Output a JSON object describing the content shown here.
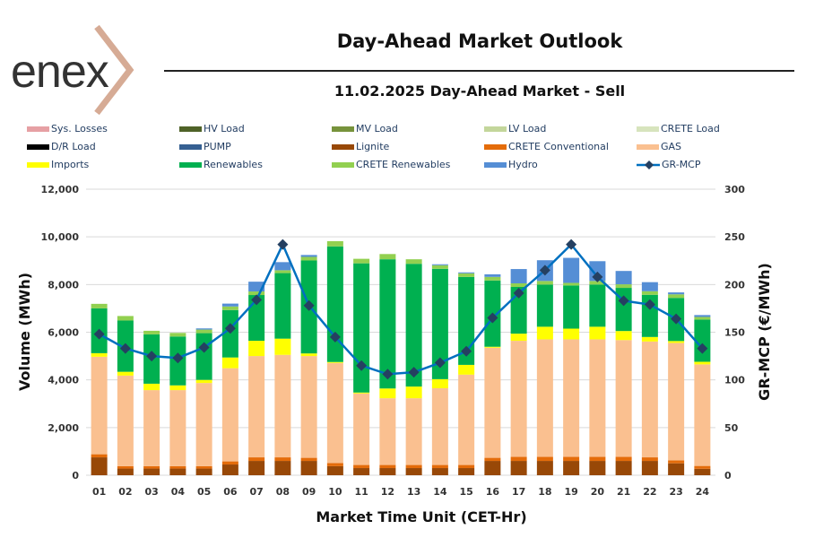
{
  "header": {
    "logo_text": "enex",
    "title": "Day-Ahead Market Outlook",
    "subtitle": "11.02.2025  Day-Ahead Market - Sell"
  },
  "colors": {
    "sys_losses": "#e6a0a4",
    "hv_load": "#4f6228",
    "mv_load": "#77933c",
    "lv_load": "#c3d69b",
    "crete_load": "#d7e4bd",
    "dr_load": "#000000",
    "pump": "#366092",
    "lignite": "#984807",
    "crete_conventional": "#e46c0a",
    "gas": "#fac090",
    "imports": "#ffff00",
    "renewables": "#00b050",
    "crete_renewables": "#92d050",
    "hydro": "#558ed5",
    "mcp_line": "#0070c0",
    "mcp_marker": "#254061"
  },
  "chart_data": {
    "type": "bar",
    "subtype": "stacked-bar-with-line",
    "title": "11.02.2025  Day-Ahead Market - Sell",
    "xlabel": "Market Time Unit (CET-Hr)",
    "ylabel": "Volume (MWh)",
    "y2label": "GR-MCP (€/MWh)",
    "ylim": [
      0,
      12000
    ],
    "y2lim": [
      0,
      300
    ],
    "yticks": [
      "0",
      "2,000",
      "4,000",
      "6,000",
      "8,000",
      "10,000",
      "12,000"
    ],
    "y2ticks": [
      "0",
      "50",
      "100",
      "150",
      "200",
      "250",
      "300"
    ],
    "grid": true,
    "legend_position": "top",
    "categories": [
      "01",
      "02",
      "03",
      "04",
      "05",
      "06",
      "07",
      "08",
      "09",
      "10",
      "11",
      "12",
      "13",
      "14",
      "15",
      "16",
      "17",
      "18",
      "19",
      "20",
      "21",
      "22",
      "23",
      "24"
    ],
    "legend": [
      {
        "key": "sys_losses",
        "label": "Sys. Losses"
      },
      {
        "key": "hv_load",
        "label": "HV Load"
      },
      {
        "key": "mv_load",
        "label": "MV Load"
      },
      {
        "key": "lv_load",
        "label": "LV Load"
      },
      {
        "key": "crete_load",
        "label": "CRETE Load"
      },
      {
        "key": "dr_load",
        "label": "D/R Load"
      },
      {
        "key": "pump",
        "label": "PUMP"
      },
      {
        "key": "lignite",
        "label": "Lignite"
      },
      {
        "key": "crete_conventional",
        "label": "CRETE Conventional"
      },
      {
        "key": "gas",
        "label": "GAS"
      },
      {
        "key": "imports",
        "label": "Imports"
      },
      {
        "key": "renewables",
        "label": "Renewables"
      },
      {
        "key": "crete_renewables",
        "label": "CRETE Renewables"
      },
      {
        "key": "hydro",
        "label": "Hydro"
      },
      {
        "key": "mcp",
        "label": "GR-MCP"
      }
    ],
    "series": [
      {
        "name": "Lignite",
        "key": "lignite",
        "values": [
          750,
          280,
          280,
          280,
          280,
          450,
          600,
          600,
          600,
          380,
          300,
          300,
          300,
          300,
          300,
          600,
          600,
          600,
          600,
          600,
          600,
          600,
          500,
          270
        ]
      },
      {
        "name": "CRETE Conventional",
        "key": "crete_conventional",
        "values": [
          130,
          100,
          100,
          100,
          100,
          130,
          150,
          150,
          130,
          130,
          130,
          130,
          130,
          130,
          130,
          130,
          170,
          170,
          170,
          170,
          170,
          150,
          120,
          120
        ]
      },
      {
        "name": "GAS",
        "key": "gas",
        "values": [
          4090,
          3800,
          3190,
          3190,
          3490,
          3910,
          4250,
          4300,
          4270,
          4200,
          3000,
          2800,
          2800,
          3220,
          3790,
          4620,
          4870,
          4930,
          4930,
          4930,
          4900,
          4860,
          4930,
          4260
        ]
      },
      {
        "name": "Imports",
        "key": "imports",
        "values": [
          150,
          160,
          270,
          200,
          130,
          450,
          640,
          680,
          110,
          40,
          40,
          410,
          490,
          380,
          410,
          40,
          300,
          530,
          450,
          530,
          380,
          190,
          80,
          110
        ]
      },
      {
        "name": "Renewables",
        "key": "renewables",
        "values": [
          1880,
          2150,
          2070,
          2050,
          1960,
          1990,
          1920,
          2750,
          3900,
          4850,
          5420,
          5420,
          5150,
          4630,
          3690,
          2780,
          1960,
          1770,
          1810,
          1770,
          1810,
          1770,
          1810,
          1770
        ]
      },
      {
        "name": "CRETE Renewables",
        "key": "crete_renewables",
        "values": [
          190,
          190,
          150,
          150,
          150,
          150,
          150,
          120,
          150,
          220,
          190,
          220,
          190,
          150,
          150,
          150,
          150,
          150,
          110,
          150,
          150,
          150,
          150,
          110
        ]
      },
      {
        "name": "Hydro",
        "key": "hydro",
        "values": [
          0,
          0,
          0,
          0,
          50,
          120,
          410,
          340,
          80,
          0,
          0,
          0,
          0,
          40,
          40,
          110,
          600,
          870,
          1050,
          830,
          560,
          380,
          80,
          80
        ]
      }
    ],
    "line": {
      "name": "GR-MCP",
      "key": "mcp",
      "axis": "right",
      "values": [
        148,
        133,
        125,
        123,
        134,
        154,
        184,
        242,
        178,
        145,
        115,
        106,
        108,
        118,
        130,
        165,
        191,
        215,
        242,
        208,
        183,
        179,
        164,
        133
      ]
    }
  }
}
